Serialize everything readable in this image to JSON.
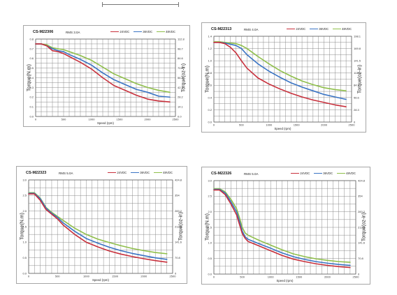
{
  "colors": {
    "24VDC": "#c8303c",
    "36VDC": "#3a74c4",
    "48VDC": "#8fbf4a",
    "grid": "#7f7f7f"
  },
  "chart_data": [
    {
      "type": "line",
      "title": "CS-M22306",
      "subtitle": "RMS 3.0A",
      "xlabel": "Speed (rpm)",
      "ylabel": "Torque(N.m)",
      "ylabel_right": "Torque(oz-in)",
      "xlim": [
        0,
        2500
      ],
      "xticks": [
        "0",
        "500",
        "1000",
        "1500",
        "2000",
        "2500"
      ],
      "ylim": [
        0,
        0.8
      ],
      "yticks": [
        "0.0",
        "0.1",
        "0.2",
        "0.3",
        "0.4",
        "0.5",
        "0.6",
        "0.7",
        "0.8"
      ],
      "yticks_right": [
        "0.0",
        "14.1",
        "28.2",
        "42.3",
        "56.4",
        "70.5",
        "84.6",
        "98.7",
        "112.8"
      ],
      "grid": true,
      "legend": "top-right",
      "x": [
        0,
        100,
        200,
        300,
        400,
        500,
        600,
        800,
        1000,
        1200,
        1400,
        1600,
        1800,
        2000,
        2200,
        2400
      ],
      "series": [
        {
          "name": "24VDC",
          "values": [
            0.75,
            0.75,
            0.73,
            0.68,
            0.67,
            0.65,
            0.62,
            0.56,
            0.49,
            0.4,
            0.32,
            0.27,
            0.22,
            0.18,
            0.16,
            0.15
          ]
        },
        {
          "name": "36VDC",
          "values": [
            0.75,
            0.75,
            0.73,
            0.7,
            0.68,
            0.67,
            0.64,
            0.59,
            0.53,
            0.45,
            0.38,
            0.33,
            0.28,
            0.25,
            0.21,
            0.2
          ]
        },
        {
          "name": "48VDC",
          "values": [
            0.75,
            0.75,
            0.74,
            0.71,
            0.7,
            0.69,
            0.67,
            0.63,
            0.58,
            0.51,
            0.44,
            0.39,
            0.34,
            0.3,
            0.27,
            0.25
          ]
        }
      ]
    },
    {
      "type": "line",
      "title": "CS-M22313",
      "subtitle": "RMS 4.0A",
      "xlabel": "Speed (rpm)",
      "ylabel": "Torque(N.m)",
      "ylabel_right": "Torque(oz-in)",
      "xlim": [
        0,
        2500
      ],
      "xticks": [
        "0",
        "500",
        "1000",
        "1500",
        "2000",
        "2500"
      ],
      "ylim": [
        0,
        1.4
      ],
      "yticks": [
        "0.0",
        "0.2",
        "0.4",
        "0.6",
        "0.8",
        "1.0",
        "1.2",
        "1.4"
      ],
      "yticks_right": [
        "0",
        "28.3",
        "56.6",
        "84.9",
        "113.2",
        "141.5",
        "169.8",
        "198.1"
      ],
      "grid": true,
      "legend": "top-right",
      "x": [
        0,
        100,
        200,
        300,
        400,
        500,
        600,
        800,
        1000,
        1200,
        1400,
        1600,
        1800,
        2000,
        2200,
        2400
      ],
      "series": [
        {
          "name": "24VDC",
          "values": [
            1.3,
            1.3,
            1.28,
            1.22,
            1.13,
            1.0,
            0.88,
            0.72,
            0.62,
            0.54,
            0.47,
            0.41,
            0.36,
            0.32,
            0.28,
            0.25
          ]
        },
        {
          "name": "36VDC",
          "values": [
            1.3,
            1.3,
            1.29,
            1.27,
            1.25,
            1.2,
            1.1,
            0.95,
            0.83,
            0.73,
            0.64,
            0.57,
            0.51,
            0.45,
            0.41,
            0.37
          ]
        },
        {
          "name": "48VDC",
          "values": [
            1.31,
            1.31,
            1.3,
            1.29,
            1.28,
            1.25,
            1.2,
            1.07,
            0.95,
            0.84,
            0.75,
            0.67,
            0.61,
            0.56,
            0.53,
            0.51
          ]
        }
      ]
    },
    {
      "type": "line",
      "title": "CS-M22323",
      "subtitle": "RMS 5.0A",
      "xlabel": "Speed (rpm)",
      "ylabel": "Torque(N.m)",
      "ylabel_right": "Torque(oz-in)",
      "xlim": [
        0,
        2500
      ],
      "xticks": [
        "0",
        "500",
        "1000",
        "1500",
        "2000",
        "2500"
      ],
      "ylim": [
        0,
        3.0
      ],
      "yticks": [
        "0.0",
        "0.5",
        "1.0",
        "1.5",
        "2.0",
        "2.5",
        "3.0"
      ],
      "yticks_right": [
        "0",
        "70.8",
        "141.6",
        "212.4",
        "283.2",
        "354",
        "424.8"
      ],
      "grid": true,
      "legend": "top-right",
      "x": [
        0,
        100,
        200,
        300,
        400,
        500,
        600,
        800,
        1000,
        1200,
        1400,
        1600,
        1800,
        2000,
        2200,
        2400
      ],
      "series": [
        {
          "name": "24VDC",
          "values": [
            2.55,
            2.55,
            2.35,
            2.05,
            1.9,
            1.75,
            1.55,
            1.25,
            1.0,
            0.85,
            0.72,
            0.62,
            0.54,
            0.47,
            0.41,
            0.36
          ]
        },
        {
          "name": "36VDC",
          "values": [
            2.57,
            2.57,
            2.4,
            2.1,
            1.93,
            1.8,
            1.62,
            1.35,
            1.12,
            0.97,
            0.84,
            0.73,
            0.64,
            0.57,
            0.5,
            0.45
          ]
        },
        {
          "name": "48VDC",
          "values": [
            2.59,
            2.59,
            2.42,
            2.12,
            1.96,
            1.83,
            1.7,
            1.45,
            1.25,
            1.1,
            0.99,
            0.89,
            0.8,
            0.73,
            0.67,
            0.63
          ]
        }
      ]
    },
    {
      "type": "line",
      "title": "CS-M22326",
      "subtitle": "RMS 5.0A",
      "xlabel": "Speed (rpm)",
      "ylabel": "Torque(N.m)",
      "ylabel_right": "Torque(oz-in)",
      "xlim": [
        0,
        2500
      ],
      "xticks": [
        "0",
        "500",
        "1000",
        "1500",
        "2000",
        "2500"
      ],
      "ylim": [
        0,
        3.0
      ],
      "yticks": [
        "0.0",
        "0.5",
        "1.0",
        "1.5",
        "2.0",
        "2.5",
        "3.0"
      ],
      "yticks_right": [
        "0",
        "70.8",
        "141.6",
        "212.4",
        "283.2",
        "354",
        "424.8"
      ],
      "grid": true,
      "legend": "top-right",
      "x": [
        0,
        100,
        200,
        300,
        400,
        450,
        500,
        550,
        600,
        800,
        1000,
        1200,
        1400,
        1600,
        1800,
        2000,
        2200,
        2400
      ],
      "series": [
        {
          "name": "24VDC",
          "values": [
            2.7,
            2.7,
            2.55,
            2.25,
            1.9,
            1.6,
            1.3,
            1.15,
            1.05,
            0.9,
            0.75,
            0.6,
            0.48,
            0.4,
            0.33,
            0.28,
            0.24,
            0.21
          ]
        },
        {
          "name": "36VDC",
          "values": [
            2.72,
            2.72,
            2.6,
            2.32,
            2.0,
            1.7,
            1.38,
            1.2,
            1.12,
            0.97,
            0.83,
            0.68,
            0.56,
            0.47,
            0.4,
            0.35,
            0.31,
            0.28
          ]
        },
        {
          "name": "48VDC",
          "values": [
            2.74,
            2.74,
            2.64,
            2.4,
            2.1,
            1.82,
            1.5,
            1.32,
            1.25,
            1.08,
            0.93,
            0.78,
            0.65,
            0.56,
            0.49,
            0.44,
            0.4,
            0.38
          ]
        }
      ]
    }
  ]
}
